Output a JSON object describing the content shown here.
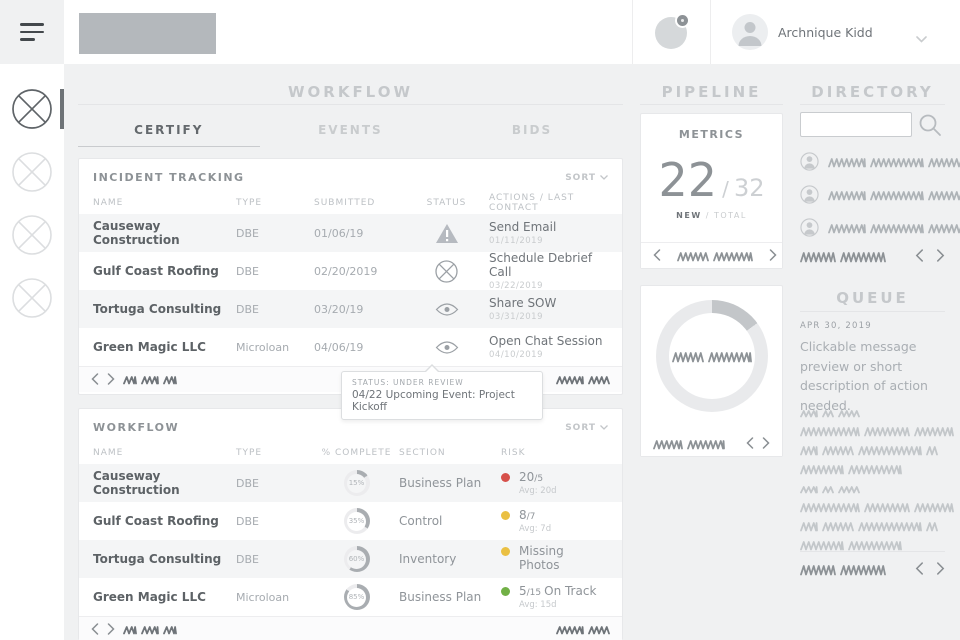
{
  "topbar": {
    "user_name": "Archnique Kidd"
  },
  "main": {
    "title": "WORKFLOW",
    "tabs": [
      {
        "label": "CERTIFY"
      },
      {
        "label": "EVENTS"
      },
      {
        "label": "BIDS"
      }
    ],
    "incident": {
      "title": "INCIDENT TRACKING",
      "sort_label": "SORT",
      "columns": [
        "NAME",
        "TYPE",
        "SUBMITTED",
        "STATUS",
        "ACTIONS / LAST CONTACT"
      ],
      "rows": [
        {
          "name": "Causeway Construction",
          "type": "DBE",
          "submitted": "01/06/19",
          "status_icon": "warning-triangle",
          "action": "Send Email",
          "last_contact": "01/11/2019"
        },
        {
          "name": "Gulf Coast Roofing",
          "type": "DBE",
          "submitted": "02/20/2019",
          "status_icon": "circle-x",
          "action": "Schedule Debrief Call",
          "last_contact": "03/22/2019"
        },
        {
          "name": "Tortuga Consulting",
          "type": "DBE",
          "submitted": "03/20/19",
          "status_icon": "eye",
          "action": "Share SOW",
          "last_contact": "03/31/2019"
        },
        {
          "name": "Green Magic LLC",
          "type": "Microloan",
          "submitted": "04/06/19",
          "status_icon": "eye",
          "action": "Open Chat Session",
          "last_contact": "04/10/2019"
        }
      ]
    },
    "tooltip": {
      "status_line": "STATUS: UNDER REVIEW",
      "event_line": "04/22 Upcoming Event: Project Kickoff"
    },
    "workflow": {
      "title": "WORKFLOW",
      "sort_label": "SORT",
      "columns": [
        "NAME",
        "TYPE",
        "% COMPLETE",
        "SECTION",
        "RISK"
      ],
      "rows": [
        {
          "name": "Causeway Construction",
          "type": "DBE",
          "percent": 15,
          "percent_label": "15%",
          "section": "Business Plan",
          "risk_color": "#d6504a",
          "risk_value": "20",
          "risk_denom": "/5",
          "risk_note": "",
          "risk_avg": "Avg: 20d"
        },
        {
          "name": "Gulf Coast Roofing",
          "type": "DBE",
          "percent": 35,
          "percent_label": "35%",
          "section": "Control",
          "risk_color": "#eac043",
          "risk_value": "8",
          "risk_denom": "/7",
          "risk_note": "",
          "risk_avg": "Avg: 7d"
        },
        {
          "name": "Tortuga Consulting",
          "type": "DBE",
          "percent": 60,
          "percent_label": "60%",
          "section": "Inventory",
          "risk_color": "#eac043",
          "risk_value": "",
          "risk_denom": "",
          "risk_note": "Missing Photos",
          "risk_avg": ""
        },
        {
          "name": "Green Magic LLC",
          "type": "Microloan",
          "percent": 85,
          "percent_label": "85%",
          "section": "Business Plan",
          "risk_color": "#71b046",
          "risk_value": "5",
          "risk_denom": "/15",
          "risk_note": "On Track",
          "risk_avg": "Avg: 15d"
        }
      ]
    }
  },
  "pipeline": {
    "title": "PIPELINE",
    "metrics": {
      "card_title": "METRICS",
      "new_value": "22",
      "separator": "/",
      "total_value": "32",
      "new_label": "NEW",
      "label_separator": "/",
      "total_label": "TOTAL"
    },
    "chart": {
      "percent": 15
    }
  },
  "directory": {
    "title": "DIRECTORY",
    "search_placeholder": ""
  },
  "queue": {
    "title": "QUEUE",
    "date": "APR 30, 2019",
    "message": "Clickable message preview or short description of action needed."
  }
}
